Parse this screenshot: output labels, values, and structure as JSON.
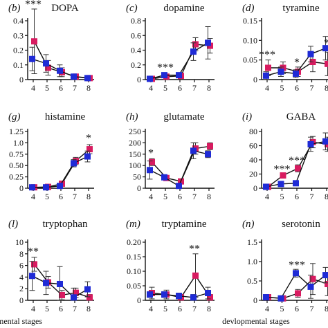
{
  "footer": {
    "left_text": "mental stages",
    "right_text": "devlopmental stages"
  },
  "colors": {
    "series_pink": "#d81b60",
    "series_blue": "#1f2bd6",
    "errorbar": "#333333"
  },
  "chart_data": [
    {
      "type": "line",
      "letter": "(b)",
      "title": "DOPA",
      "x": [
        4,
        5,
        6,
        7,
        8
      ],
      "ylim": [
        0,
        0.4
      ],
      "yticks": [
        "0",
        "0.1",
        "0.2",
        "0.3",
        "0.4"
      ],
      "series": [
        {
          "color": "pink",
          "values": [
            0.26,
            0.08,
            0.05,
            0.02,
            0.01
          ],
          "err": [
            0.22,
            0.05,
            0.03,
            0.01,
            0.01
          ]
        },
        {
          "color": "blue",
          "values": [
            0.14,
            0.11,
            0.06,
            0.02,
            0.01
          ],
          "err": [
            0.08,
            0.06,
            0.04,
            0.01,
            0.01
          ]
        }
      ],
      "annotations": [
        {
          "text": "***",
          "x": 4,
          "y": 0.49
        }
      ]
    },
    {
      "type": "line",
      "letter": "(c)",
      "title": "dopamine",
      "x": [
        4,
        5,
        6,
        7,
        8
      ],
      "ylim": [
        0,
        0.8
      ],
      "yticks": [
        "0",
        "0.2",
        "0.4",
        "0.6",
        "0.8"
      ],
      "series": [
        {
          "color": "pink",
          "values": [
            0.01,
            0.04,
            0.05,
            0.48,
            0.46
          ],
          "err": [
            0.01,
            0.02,
            0.02,
            0.09,
            0.1
          ]
        },
        {
          "color": "blue",
          "values": [
            0.01,
            0.06,
            0.06,
            0.38,
            0.5
          ],
          "err": [
            0.01,
            0.03,
            0.02,
            0.12,
            0.22
          ]
        }
      ],
      "annotations": [
        {
          "text": "***",
          "x": 5,
          "y": 0.12
        }
      ]
    },
    {
      "type": "line",
      "letter": "(d)",
      "title": "tyramine",
      "x": [
        4,
        5,
        6,
        7,
        8
      ],
      "ylim": [
        0,
        0.15
      ],
      "yticks": [
        "0",
        "0.05",
        "0.10",
        "0.15"
      ],
      "series": [
        {
          "color": "pink",
          "values": [
            0.03,
            0.03,
            0.02,
            0.045,
            0.04
          ],
          "err": [
            0.02,
            0.015,
            0.012,
            0.025,
            0.03
          ]
        },
        {
          "color": "blue",
          "values": [
            0.01,
            0.02,
            0.015,
            0.065,
            0.08
          ],
          "err": [
            0.01,
            0.012,
            0.01,
            0.02,
            0.03
          ]
        }
      ],
      "annotations": [
        {
          "text": "***",
          "x": 4,
          "y": 0.055
        },
        {
          "text": "*",
          "x": 6,
          "y": 0.035
        },
        {
          "text": "*",
          "x": 8,
          "y": 0.085
        }
      ]
    },
    {
      "type": "line",
      "letter": "(g)",
      "title": "histamine",
      "x": [
        4,
        5,
        6,
        7,
        8
      ],
      "ylim": [
        0,
        1.25
      ],
      "yticks": [
        "0",
        "0.25",
        "0.50",
        "0.75",
        "1.0",
        "1.25"
      ],
      "series": [
        {
          "color": "pink",
          "values": [
            0.02,
            0.03,
            0.1,
            0.6,
            0.86
          ],
          "err": [
            0.01,
            0.02,
            0.04,
            0.08,
            0.1
          ]
        },
        {
          "color": "blue",
          "values": [
            0.02,
            0.02,
            0.05,
            0.55,
            0.7
          ],
          "err": [
            0.01,
            0.01,
            0.03,
            0.08,
            0.12
          ]
        }
      ],
      "annotations": [
        {
          "text": "*",
          "x": 8,
          "y": 1.03
        }
      ]
    },
    {
      "type": "line",
      "letter": "(h)",
      "title": "glutamate",
      "x": [
        4,
        5,
        6,
        7,
        8
      ],
      "ylim": [
        0,
        250
      ],
      "yticks": [
        "0",
        "50",
        "100",
        "150",
        "200",
        "250"
      ],
      "series": [
        {
          "color": "pink",
          "values": [
            115,
            45,
            30,
            175,
            185
          ],
          "err": [
            15,
            8,
            10,
            25,
            15
          ]
        },
        {
          "color": "blue",
          "values": [
            80,
            48,
            10,
            165,
            150
          ],
          "err": [
            40,
            10,
            8,
            35,
            15
          ]
        }
      ],
      "annotations": [
        {
          "text": "*",
          "x": 4,
          "y": 140
        }
      ]
    },
    {
      "type": "line",
      "letter": "(i)",
      "title": "GABA",
      "x": [
        4,
        5,
        6,
        7,
        8
      ],
      "ylim": [
        0,
        80
      ],
      "yticks": [
        "0",
        "20",
        "40",
        "60",
        "80"
      ],
      "series": [
        {
          "color": "pink",
          "values": [
            2,
            18,
            28,
            65,
            62
          ],
          "err": [
            1,
            3,
            5,
            8,
            10
          ]
        },
        {
          "color": "blue",
          "values": [
            2,
            6,
            7,
            62,
            66
          ],
          "err": [
            1,
            2,
            2,
            10,
            12
          ]
        }
      ],
      "annotations": [
        {
          "text": "***",
          "x": 5,
          "y": 22
        },
        {
          "text": "***",
          "x": 6,
          "y": 34
        }
      ]
    },
    {
      "type": "line",
      "letter": "(l)",
      "title": "tryptophan",
      "x": [
        4,
        5,
        6,
        7,
        8
      ],
      "ylim": [
        0,
        10
      ],
      "yticks": [
        "0",
        "2",
        "4",
        "6",
        "8",
        "10"
      ],
      "series": [
        {
          "color": "pink",
          "values": [
            6.2,
            3.1,
            0.9,
            1.3,
            0.5
          ],
          "err": [
            1.2,
            1.0,
            0.8,
            0.8,
            0.5
          ]
        },
        {
          "color": "blue",
          "values": [
            4.2,
            3.0,
            2.8,
            0.5,
            1.9
          ],
          "err": [
            2.5,
            2.0,
            3.0,
            1.6,
            1.3
          ]
        }
      ],
      "annotations": [
        {
          "text": "**",
          "x": 4,
          "y": 7.8
        }
      ]
    },
    {
      "type": "line",
      "letter": "(m)",
      "title": "tryptamine",
      "x": [
        4,
        5,
        6,
        7,
        8
      ],
      "ylim": [
        0,
        0.2
      ],
      "yticks": [
        "0",
        "0.05",
        "0.10",
        "0.15",
        "0.20"
      ],
      "series": [
        {
          "color": "pink",
          "values": [
            0.025,
            0.02,
            0.01,
            0.085,
            0.01
          ],
          "err": [
            0.02,
            0.015,
            0.01,
            0.075,
            0.01
          ]
        },
        {
          "color": "blue",
          "values": [
            0.02,
            0.02,
            0.015,
            0.01,
            0.025
          ],
          "err": [
            0.01,
            0.01,
            0.01,
            0.01,
            0.02
          ]
        }
      ],
      "annotations": [
        {
          "text": "**",
          "x": 7,
          "y": 0.165
        }
      ]
    },
    {
      "type": "line",
      "letter": "(n)",
      "title": "serotonin",
      "x": [
        4,
        5,
        6,
        7,
        8
      ],
      "ylim": [
        0,
        1.5
      ],
      "yticks": [
        "0",
        "0.5",
        "1.0",
        "1.5"
      ],
      "series": [
        {
          "color": "pink",
          "values": [
            0.08,
            0.05,
            0.18,
            0.55,
            0.42
          ],
          "err": [
            0.04,
            0.03,
            0.1,
            0.4,
            0.3
          ]
        },
        {
          "color": "blue",
          "values": [
            0.08,
            0.05,
            0.7,
            0.35,
            0.65
          ],
          "err": [
            0.05,
            0.03,
            0.1,
            0.3,
            0.2
          ]
        }
      ],
      "annotations": [
        {
          "text": "***",
          "x": 6,
          "y": 0.82
        }
      ]
    }
  ]
}
